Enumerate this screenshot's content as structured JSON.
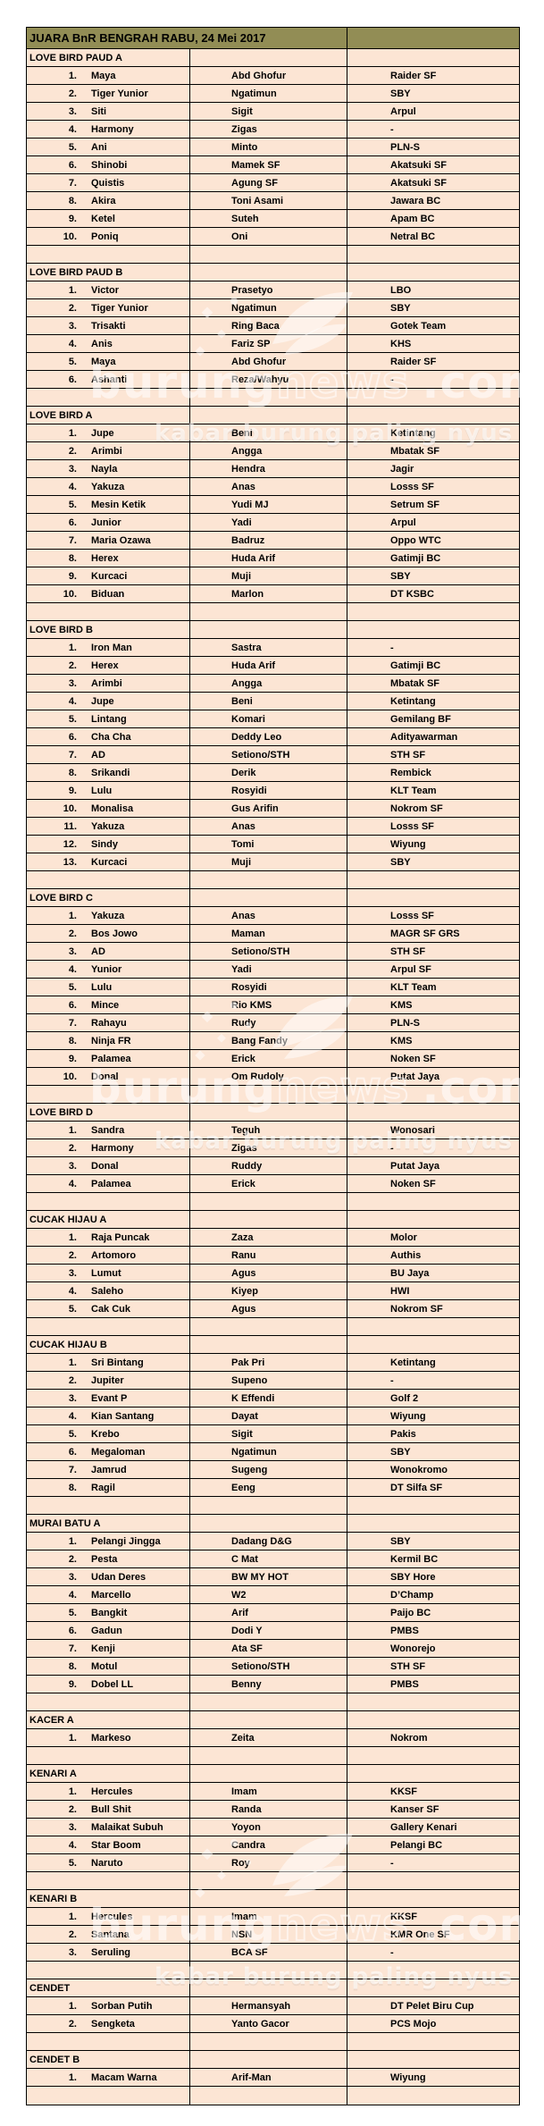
{
  "title": "JUARA BnR BENGRAH RABU, 24 Mei 2017",
  "colors": {
    "header_bg": "#928D55",
    "row_bg": "#FCE5D4",
    "border": "#000000",
    "text": "#000000",
    "watermark": "#FFFFFF"
  },
  "watermark": {
    "brand_part1": "burung",
    "brand_part2": "news",
    "brand_part3": ".com",
    "tagline": "kabar burung paling nyus",
    "logo_icon": "bird-swoosh-icon"
  },
  "sections": [
    {
      "name": "LOVE BIRD PAUD A",
      "rows": [
        {
          "rank": "1.",
          "bird": "Maya",
          "owner": "Abd Ghofur",
          "team": "Raider SF"
        },
        {
          "rank": "2.",
          "bird": "Tiger Yunior",
          "owner": "Ngatimun",
          "team": "SBY"
        },
        {
          "rank": "3.",
          "bird": "Siti",
          "owner": "Sigit",
          "team": "Arpul"
        },
        {
          "rank": "4.",
          "bird": "Harmony",
          "owner": "Zigas",
          "team": "-"
        },
        {
          "rank": "5.",
          "bird": "Ani",
          "owner": "Minto",
          "team": "PLN-S"
        },
        {
          "rank": "6.",
          "bird": "Shinobi",
          "owner": "Mamek SF",
          "team": "Akatsuki SF"
        },
        {
          "rank": "7.",
          "bird": "Quistis",
          "owner": "Agung SF",
          "team": "Akatsuki SF"
        },
        {
          "rank": "8.",
          "bird": "Akira",
          "owner": "Toni Asami",
          "team": "Jawara BC"
        },
        {
          "rank": "9.",
          "bird": "Ketel",
          "owner": "Suteh",
          "team": "Apam BC"
        },
        {
          "rank": "10.",
          "bird": "Poniq",
          "owner": "Oni",
          "team": "Netral BC"
        }
      ]
    },
    {
      "name": "LOVE BIRD PAUD B",
      "rows": [
        {
          "rank": "1.",
          "bird": "Victor",
          "owner": "Prasetyo",
          "team": "LBO"
        },
        {
          "rank": "2.",
          "bird": "Tiger Yunior",
          "owner": "Ngatimun",
          "team": "SBY"
        },
        {
          "rank": "3.",
          "bird": "Trisakti",
          "owner": "Ring Baca",
          "team": "Gotek Team"
        },
        {
          "rank": "4.",
          "bird": "Anis",
          "owner": "Fariz SP",
          "team": "KHS"
        },
        {
          "rank": "5.",
          "bird": "Maya",
          "owner": "Abd Ghofur",
          "team": "Raider SF"
        },
        {
          "rank": "6.",
          "bird": "Ashanti",
          "owner": "Reza/Wahyu",
          "team": "-"
        }
      ]
    },
    {
      "name": "LOVE BIRD A",
      "rows": [
        {
          "rank": "1.",
          "bird": "Jupe",
          "owner": "Beni",
          "team": "Ketintang"
        },
        {
          "rank": "2.",
          "bird": "Arimbi",
          "owner": "Angga",
          "team": "Mbatak SF"
        },
        {
          "rank": "3.",
          "bird": "Nayla",
          "owner": "Hendra",
          "team": "Jagir"
        },
        {
          "rank": "4.",
          "bird": "Yakuza",
          "owner": "Anas",
          "team": "Losss SF"
        },
        {
          "rank": "5.",
          "bird": "Mesin Ketik",
          "owner": "Yudi MJ",
          "team": "Setrum SF"
        },
        {
          "rank": "6.",
          "bird": "Junior",
          "owner": "Yadi",
          "team": "Arpul"
        },
        {
          "rank": "7.",
          "bird": "Maria Ozawa",
          "owner": "Badruz",
          "team": "Oppo WTC"
        },
        {
          "rank": "8.",
          "bird": "Herex",
          "owner": "Huda Arif",
          "team": "Gatimji BC"
        },
        {
          "rank": "9.",
          "bird": "Kurcaci",
          "owner": "Muji",
          "team": "SBY"
        },
        {
          "rank": "10.",
          "bird": "Biduan",
          "owner": "Marlon",
          "team": "DT KSBC"
        }
      ]
    },
    {
      "name": "LOVE BIRD B",
      "rows": [
        {
          "rank": "1.",
          "bird": "Iron Man",
          "owner": "Sastra",
          "team": "-"
        },
        {
          "rank": "2.",
          "bird": "Herex",
          "owner": "Huda Arif",
          "team": "Gatimji BC"
        },
        {
          "rank": "3.",
          "bird": "Arimbi",
          "owner": "Angga",
          "team": "Mbatak SF"
        },
        {
          "rank": "4.",
          "bird": "Jupe",
          "owner": "Beni",
          "team": "Ketintang"
        },
        {
          "rank": "5.",
          "bird": "Lintang",
          "owner": "Komari",
          "team": "Gemilang BF"
        },
        {
          "rank": "6.",
          "bird": "Cha Cha",
          "owner": "Deddy Leo",
          "team": "Adityawarman"
        },
        {
          "rank": "7.",
          "bird": "AD",
          "owner": "Setiono/STH",
          "team": "STH SF"
        },
        {
          "rank": "8.",
          "bird": "Srikandi",
          "owner": "Derik",
          "team": "Rembick"
        },
        {
          "rank": "9.",
          "bird": "Lulu",
          "owner": "Rosyidi",
          "team": "KLT Team"
        },
        {
          "rank": "10.",
          "bird": "Monalisa",
          "owner": "Gus Arifin",
          "team": "Nokrom SF"
        },
        {
          "rank": "11.",
          "bird": "Yakuza",
          "owner": "Anas",
          "team": "Losss SF"
        },
        {
          "rank": "12.",
          "bird": "Sindy",
          "owner": "Tomi",
          "team": "Wiyung"
        },
        {
          "rank": "13.",
          "bird": "Kurcaci",
          "owner": "Muji",
          "team": "SBY"
        }
      ]
    },
    {
      "name": "LOVE BIRD C",
      "rows": [
        {
          "rank": "1.",
          "bird": "Yakuza",
          "owner": "Anas",
          "team": "Losss SF"
        },
        {
          "rank": "2.",
          "bird": "Bos Jowo",
          "owner": "Maman",
          "team": "MAGR SF GRS"
        },
        {
          "rank": "3.",
          "bird": "AD",
          "owner": "Setiono/STH",
          "team": "STH SF"
        },
        {
          "rank": "4.",
          "bird": "Yunior",
          "owner": "Yadi",
          "team": "Arpul SF"
        },
        {
          "rank": "5.",
          "bird": "Lulu",
          "owner": "Rosyidi",
          "team": "KLT Team"
        },
        {
          "rank": "6.",
          "bird": "Mince",
          "owner": "Rio KMS",
          "team": "KMS"
        },
        {
          "rank": "7.",
          "bird": "Rahayu",
          "owner": "Rudy",
          "team": "PLN-S"
        },
        {
          "rank": "8.",
          "bird": "Ninja FR",
          "owner": "Bang Fandy",
          "team": "KMS"
        },
        {
          "rank": "9.",
          "bird": "Palamea",
          "owner": "Erick",
          "team": "Noken SF"
        },
        {
          "rank": "10.",
          "bird": "Donal",
          "owner": "Om Rudoly",
          "team": "Putat Jaya"
        }
      ]
    },
    {
      "name": "LOVE BIRD D",
      "rows": [
        {
          "rank": "1.",
          "bird": "Sandra",
          "owner": "Teguh",
          "team": "Wonosari"
        },
        {
          "rank": "2.",
          "bird": "Harmony",
          "owner": "Zigas",
          "team": "-"
        },
        {
          "rank": "3.",
          "bird": "Donal",
          "owner": "Ruddy",
          "team": "Putat Jaya"
        },
        {
          "rank": "4.",
          "bird": "Palamea",
          "owner": "Erick",
          "team": "Noken SF"
        }
      ]
    },
    {
      "name": "CUCAK HIJAU A",
      "rows": [
        {
          "rank": "1.",
          "bird": "Raja Puncak",
          "owner": "Zaza",
          "team": "Molor"
        },
        {
          "rank": "2.",
          "bird": "Artomoro",
          "owner": "Ranu",
          "team": "Authis"
        },
        {
          "rank": "3.",
          "bird": "Lumut",
          "owner": "Agus",
          "team": "BU Jaya"
        },
        {
          "rank": "4.",
          "bird": "Saleho",
          "owner": "Kiyep",
          "team": "HWI"
        },
        {
          "rank": "5.",
          "bird": "Cak Cuk",
          "owner": "Agus",
          "team": "Nokrom SF"
        }
      ]
    },
    {
      "name": "CUCAK HIJAU B",
      "rows": [
        {
          "rank": "1.",
          "bird": "Sri Bintang",
          "owner": "Pak Pri",
          "team": "Ketintang"
        },
        {
          "rank": "2.",
          "bird": "Jupiter",
          "owner": "Supeno",
          "team": "-"
        },
        {
          "rank": "3.",
          "bird": "Evant P",
          "owner": "K Effendi",
          "team": "Golf 2"
        },
        {
          "rank": "4.",
          "bird": "Kian Santang",
          "owner": "Dayat",
          "team": "Wiyung"
        },
        {
          "rank": "5.",
          "bird": "Krebo",
          "owner": "Sigit",
          "team": "Pakis"
        },
        {
          "rank": "6.",
          "bird": "Megaloman",
          "owner": "Ngatimun",
          "team": "SBY"
        },
        {
          "rank": "7.",
          "bird": "Jamrud",
          "owner": "Sugeng",
          "team": "Wonokromo"
        },
        {
          "rank": "8.",
          "bird": "Ragil",
          "owner": "Eeng",
          "team": "DT Silfa SF"
        }
      ]
    },
    {
      "name": "MURAI BATU A",
      "rows": [
        {
          "rank": "1.",
          "bird": "Pelangi Jingga",
          "owner": "Dadang D&G",
          "team": "SBY"
        },
        {
          "rank": "2.",
          "bird": "Pesta",
          "owner": "C Mat",
          "team": "Kermil BC"
        },
        {
          "rank": "3.",
          "bird": "Udan Deres",
          "owner": "BW MY HOT",
          "team": "SBY Hore"
        },
        {
          "rank": "4.",
          "bird": "Marcello",
          "owner": "W2",
          "team": "D’Champ"
        },
        {
          "rank": "5.",
          "bird": "Bangkit",
          "owner": "Arif",
          "team": "Paijo BC"
        },
        {
          "rank": "6.",
          "bird": "Gadun",
          "owner": "Dodi Y",
          "team": "PMBS"
        },
        {
          "rank": "7.",
          "bird": "Kenji",
          "owner": "Ata SF",
          "team": "Wonorejo"
        },
        {
          "rank": "8.",
          "bird": "Motul",
          "owner": "Setiono/STH",
          "team": "STH SF"
        },
        {
          "rank": "9.",
          "bird": "Dobel LL",
          "owner": "Benny",
          "team": "PMBS"
        }
      ]
    },
    {
      "name": "KACER A",
      "rows": [
        {
          "rank": "1.",
          "bird": "Markeso",
          "owner": "Zeita",
          "team": "Nokrom"
        }
      ]
    },
    {
      "name": "KENARI A",
      "rows": [
        {
          "rank": "1.",
          "bird": "Hercules",
          "owner": "Imam",
          "team": "KKSF"
        },
        {
          "rank": "2.",
          "bird": "Bull Shit",
          "owner": "Randa",
          "team": "Kanser SF"
        },
        {
          "rank": "3.",
          "bird": "Malaikat Subuh",
          "owner": "Yoyon",
          "team": "Gallery Kenari"
        },
        {
          "rank": "4.",
          "bird": "Star Boom",
          "owner": "Candra",
          "team": "Pelangi BC"
        },
        {
          "rank": "5.",
          "bird": "Naruto",
          "owner": "Roy",
          "team": "-"
        }
      ]
    },
    {
      "name": "KENARI B",
      "rows": [
        {
          "rank": "1.",
          "bird": "Hercules",
          "owner": "Imam",
          "team": "KKSF"
        },
        {
          "rank": "2.",
          "bird": "Santana",
          "owner": "NSN",
          "team": "KMR One SF"
        },
        {
          "rank": "3.",
          "bird": "Seruling",
          "owner": "BCA SF",
          "team": "-"
        }
      ]
    },
    {
      "name": "CENDET",
      "rows": [
        {
          "rank": "1.",
          "bird": "Sorban Putih",
          "owner": "Hermansyah",
          "team": "DT Pelet Biru Cup"
        },
        {
          "rank": "2.",
          "bird": "Sengketa",
          "owner": "Yanto Gacor",
          "team": "PCS Mojo"
        }
      ]
    },
    {
      "name": "CENDET B",
      "rows": [
        {
          "rank": "1.",
          "bird": "Macam Warna",
          "owner": "Arif-Man",
          "team": "Wiyung"
        }
      ]
    }
  ]
}
